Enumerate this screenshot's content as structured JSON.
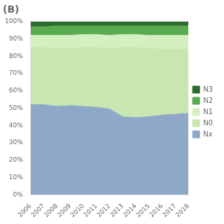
{
  "chart_data": {
    "type": "area",
    "title": "(B)",
    "x": [
      2006,
      2007,
      2008,
      2009,
      2010,
      2011,
      2012,
      2013,
      2014,
      2015,
      2016,
      2017,
      2018
    ],
    "series": [
      {
        "name": "Nx",
        "color": "#8fa8c8",
        "values": [
          52.0,
          52.0,
          51.0,
          51.5,
          51.0,
          50.5,
          49.5,
          45.0,
          44.5,
          45.0,
          46.0,
          46.5,
          47.0
        ]
      },
      {
        "name": "N0",
        "color": "#c8e6b0",
        "values": [
          33.0,
          33.0,
          33.5,
          33.0,
          34.0,
          34.5,
          35.0,
          40.0,
          40.5,
          39.5,
          38.0,
          37.5,
          37.0
        ]
      },
      {
        "name": "N1",
        "color": "#d4f0c0",
        "values": [
          7.0,
          7.0,
          7.5,
          7.5,
          7.5,
          7.5,
          7.5,
          7.5,
          7.5,
          7.5,
          8.0,
          8.0,
          8.0
        ]
      },
      {
        "name": "N2",
        "color": "#5aaa50",
        "values": [
          5.0,
          5.0,
          5.5,
          5.5,
          5.0,
          5.0,
          5.5,
          5.0,
          5.0,
          5.5,
          5.5,
          5.5,
          5.5
        ]
      },
      {
        "name": "N3",
        "color": "#2d6a2d",
        "values": [
          3.0,
          3.0,
          2.5,
          2.5,
          2.5,
          2.5,
          2.5,
          2.5,
          2.5,
          2.5,
          2.5,
          2.5,
          2.5
        ]
      }
    ],
    "xlim": [
      2006,
      2018
    ],
    "xticks": [
      2006,
      2007,
      2008,
      2009,
      2010,
      2011,
      2012,
      2013,
      2014,
      2015,
      2016,
      2017,
      2018
    ],
    "ylim": [
      0,
      100
    ],
    "yticks": [
      {
        "value": 0,
        "label": "0%"
      },
      {
        "value": 10,
        "label": "10%"
      },
      {
        "value": 20,
        "label": "20%"
      },
      {
        "value": 30,
        "label": "30%"
      },
      {
        "value": 40,
        "label": "40%"
      },
      {
        "value": 50,
        "label": "50%"
      },
      {
        "value": 60,
        "label": "60%"
      },
      {
        "value": 70,
        "label": "70%"
      },
      {
        "value": 80,
        "label": "80%"
      },
      {
        "value": 90,
        "label": "90%"
      },
      {
        "value": 100,
        "label": "100%"
      }
    ],
    "stacked": true,
    "grid": false,
    "legend": "right"
  }
}
